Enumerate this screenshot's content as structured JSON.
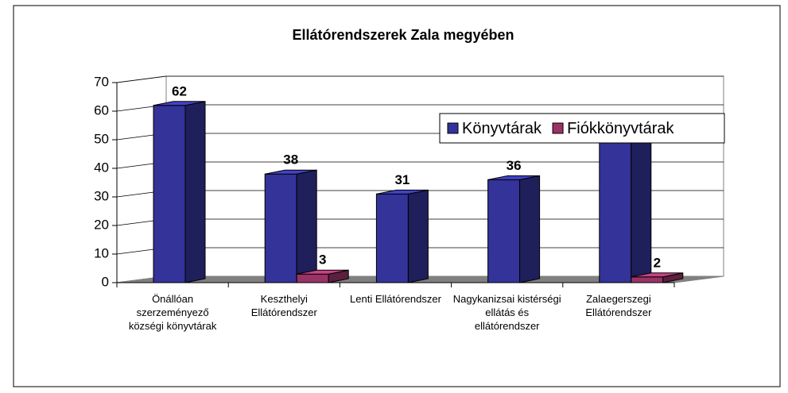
{
  "chart_data": {
    "type": "bar3d",
    "title": "Ellátórendszerek Zala megyében",
    "categories": [
      "Önállóan szerzeményező községi könyvtárak",
      "Keszthelyi Ellátórendszer",
      "Lenti Ellátórendszer",
      "Nagykanizsai kistérségi ellátás és ellátórendszer",
      "Zalaegerszegi Ellátórendszer"
    ],
    "series": [
      {
        "name": "Könyvtárak",
        "color": "#333399",
        "values": [
          62,
          38,
          31,
          36,
          49
        ]
      },
      {
        "name": "Fiókkönyvtárak",
        "color": "#993366",
        "values": [
          null,
          3,
          null,
          null,
          2
        ]
      }
    ],
    "ylim": [
      0,
      70
    ],
    "yticks": [
      0,
      10,
      20,
      30,
      40,
      50,
      60,
      70
    ],
    "grid": true,
    "legend": "top-right"
  }
}
